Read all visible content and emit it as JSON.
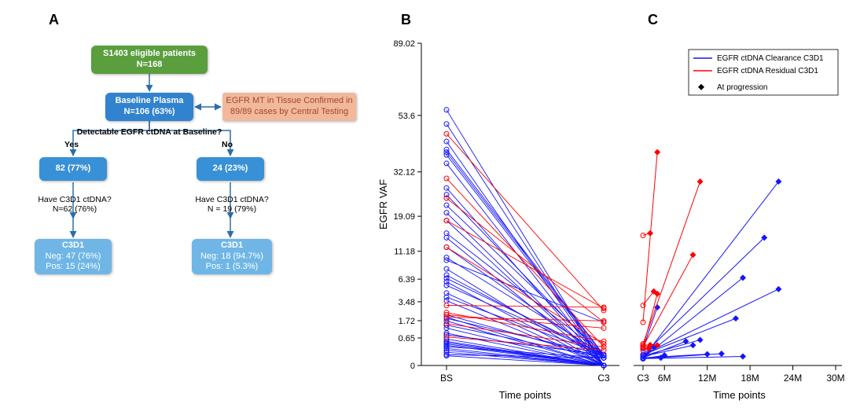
{
  "panels": {
    "A": "A",
    "B": "B",
    "C": "C"
  },
  "flowchart": {
    "root": {
      "line1": "S1403 eligible patients",
      "line2": "N=168",
      "bg": "#5a9e3e"
    },
    "baseline": {
      "line1": "Baseline Plasma",
      "line2": "N=106 (63%)",
      "bg": "#3182cf"
    },
    "side_note": {
      "line1": "EGFR MT in Tissue Confirmed in",
      "line2": "89/89 cases by Central Testing",
      "bg": "#f1b89c",
      "fg": "#a5472a"
    },
    "q_detect": "Detectable EGFR ctDNA at Baseline?",
    "yes": "Yes",
    "no": "No",
    "yes_box": {
      "text": "82 (77%)",
      "bg": "#3890d6"
    },
    "no_box": {
      "text": "24 (23%)",
      "bg": "#3890d6"
    },
    "q_yes_c3": {
      "line1": "Have C3D1 ctDNA?",
      "line2": "N=62 (76%)"
    },
    "q_no_c3": {
      "line1": "Have C3D1 ctDNA?",
      "line2": "N = 19 (79%)"
    },
    "yes_c3": {
      "title": "C3D1",
      "neg": "Neg: 47 (76%)",
      "pos": "Pos: 15 (24%)",
      "bg": "#6fb6e6"
    },
    "no_c3": {
      "title": "C3D1",
      "neg": "Neg: 18 (94.7%)",
      "pos": "Pos: 1 (5.3%)",
      "bg": "#6fb6e6"
    },
    "arrow_color": "#2c6da8"
  },
  "plot": {
    "colors": {
      "clearance": "#1414ff",
      "residual": "#ff0000",
      "axis": "#000000",
      "panel_border": "#000000"
    },
    "y_label": "EGFR VAF",
    "y_ticks": [
      0,
      0.65,
      1.72,
      3.48,
      6.39,
      11.18,
      19.09,
      32.12,
      53.6,
      89.02
    ],
    "y_tick_labels": [
      "0",
      "0.65",
      "1.72",
      "3.48",
      "6.39",
      "11.18",
      "19.09",
      "32.12",
      "53.6",
      "89.02"
    ],
    "panel_B": {
      "x_label": "Time points",
      "x_ticks": [
        "BS",
        "C3"
      ],
      "lines_clearance": [
        [
          56,
          0
        ],
        [
          38,
          0.05
        ],
        [
          50,
          0
        ],
        [
          40,
          0.1
        ],
        [
          35,
          0
        ],
        [
          27,
          0
        ],
        [
          43,
          0
        ],
        [
          25,
          0.05
        ],
        [
          22,
          0.1
        ],
        [
          20,
          0
        ],
        [
          18,
          0
        ],
        [
          39,
          0.08
        ],
        [
          15,
          0.1
        ],
        [
          14,
          0
        ],
        [
          12,
          0.05
        ],
        [
          10,
          0.1
        ],
        [
          9.5,
          1.6
        ],
        [
          8,
          0
        ],
        [
          7,
          0.05
        ],
        [
          6.5,
          0.1
        ],
        [
          6,
          0
        ],
        [
          5.5,
          0.1
        ],
        [
          4.5,
          0
        ],
        [
          4,
          0.1
        ],
        [
          3.6,
          0
        ],
        [
          2.2,
          0.05
        ],
        [
          2,
          0
        ],
        [
          1.9,
          0.1
        ],
        [
          1.7,
          0
        ],
        [
          1.4,
          0.05
        ],
        [
          1.2,
          0
        ],
        [
          0.9,
          0
        ],
        [
          0.8,
          0.1
        ],
        [
          0.6,
          0
        ],
        [
          0.5,
          0
        ],
        [
          0.45,
          0
        ],
        [
          0.4,
          0
        ],
        [
          0.35,
          0
        ],
        [
          0.3,
          0.05
        ],
        [
          0.25,
          0
        ],
        [
          0.2,
          0
        ],
        [
          0.15,
          0
        ],
        [
          0.1,
          0.05
        ],
        [
          0.08,
          0
        ]
      ],
      "lines_residual": [
        [
          46,
          2.6
        ],
        [
          30,
          0.3
        ],
        [
          24,
          1.6
        ],
        [
          18,
          2.8
        ],
        [
          12,
          0.4
        ],
        [
          3.1,
          2.9
        ],
        [
          2.4,
          0.5
        ],
        [
          2,
          1.7
        ],
        [
          1.5,
          0.3
        ],
        [
          0.7,
          0.2
        ],
        [
          2.2,
          1.2
        ]
      ],
      "open_circles_both_ends": true
    },
    "panel_C": {
      "x_label": "Time points",
      "x_ticks": [
        3,
        6,
        12,
        18,
        24,
        30
      ],
      "x_tick_labels": [
        "C3",
        "6M",
        "12M",
        "18M",
        "24M",
        "30M"
      ],
      "lines_clearance": [
        {
          "pts": [
            [
              3,
              0.05
            ],
            [
              22,
              29
            ]
          ]
        },
        {
          "pts": [
            [
              3,
              0.1
            ],
            [
              20,
              14
            ]
          ]
        },
        {
          "pts": [
            [
              3,
              0.05
            ],
            [
              17,
              6.6
            ]
          ]
        },
        {
          "pts": [
            [
              3,
              0.1
            ],
            [
              22,
              5.0
            ]
          ]
        },
        {
          "pts": [
            [
              3,
              0.1
            ],
            [
              16,
              1.9
            ]
          ]
        },
        {
          "pts": [
            [
              3,
              0.08
            ],
            [
              11,
              0.56
            ]
          ]
        },
        {
          "pts": [
            [
              3,
              0.04
            ],
            [
              14,
              0.12
            ]
          ]
        },
        {
          "pts": [
            [
              3,
              0.04
            ],
            [
              17,
              0.07
            ]
          ]
        },
        {
          "pts": [
            [
              3,
              0.05
            ],
            [
              12,
              0.11
            ]
          ]
        },
        {
          "pts": [
            [
              3,
              0.05
            ],
            [
              9,
              0.5
            ]
          ]
        },
        {
          "pts": [
            [
              3,
              0.25
            ],
            [
              5,
              2.9
            ]
          ]
        },
        {
          "pts": [
            [
              3,
              0.04
            ],
            [
              6,
              0.09
            ]
          ]
        },
        {
          "pts": [
            [
              3,
              0.07
            ],
            [
              10,
              0.35
            ]
          ]
        },
        {
          "pts": [
            [
              3,
              0.05
            ],
            [
              4.5,
              0.3
            ]
          ]
        },
        {
          "pts": [
            [
              3,
              0.04
            ],
            [
              5.5,
              0.05
            ]
          ]
        }
      ],
      "lines_residual": [
        {
          "pts": [
            [
              3,
              1.6
            ],
            [
              5,
              39
            ]
          ]
        },
        {
          "pts": [
            [
              3,
              14.5
            ],
            [
              4,
              15
            ]
          ]
        },
        {
          "pts": [
            [
              3,
              3.1
            ],
            [
              4.5,
              4.7
            ]
          ]
        },
        {
          "pts": [
            [
              3,
              0.3
            ],
            [
              10,
              10.5
            ]
          ]
        },
        {
          "pts": [
            [
              3,
              0.4
            ],
            [
              11,
              29
            ]
          ]
        },
        {
          "pts": [
            [
              3,
              0.35
            ],
            [
              4,
              0.36
            ]
          ]
        },
        {
          "pts": [
            [
              3,
              0.28
            ],
            [
              5,
              4.4
            ]
          ]
        },
        {
          "pts": [
            [
              3,
              0.3
            ],
            [
              5,
              0.35
            ]
          ]
        },
        {
          "pts": [
            [
              3,
              0.2
            ],
            [
              3.8,
              0.25
            ]
          ]
        }
      ],
      "legend": {
        "clearance": "EGFR ctDNA Clearance C3D1",
        "residual": "EGFR ctDNA Residual C3D1",
        "progression": "At progression"
      }
    }
  }
}
